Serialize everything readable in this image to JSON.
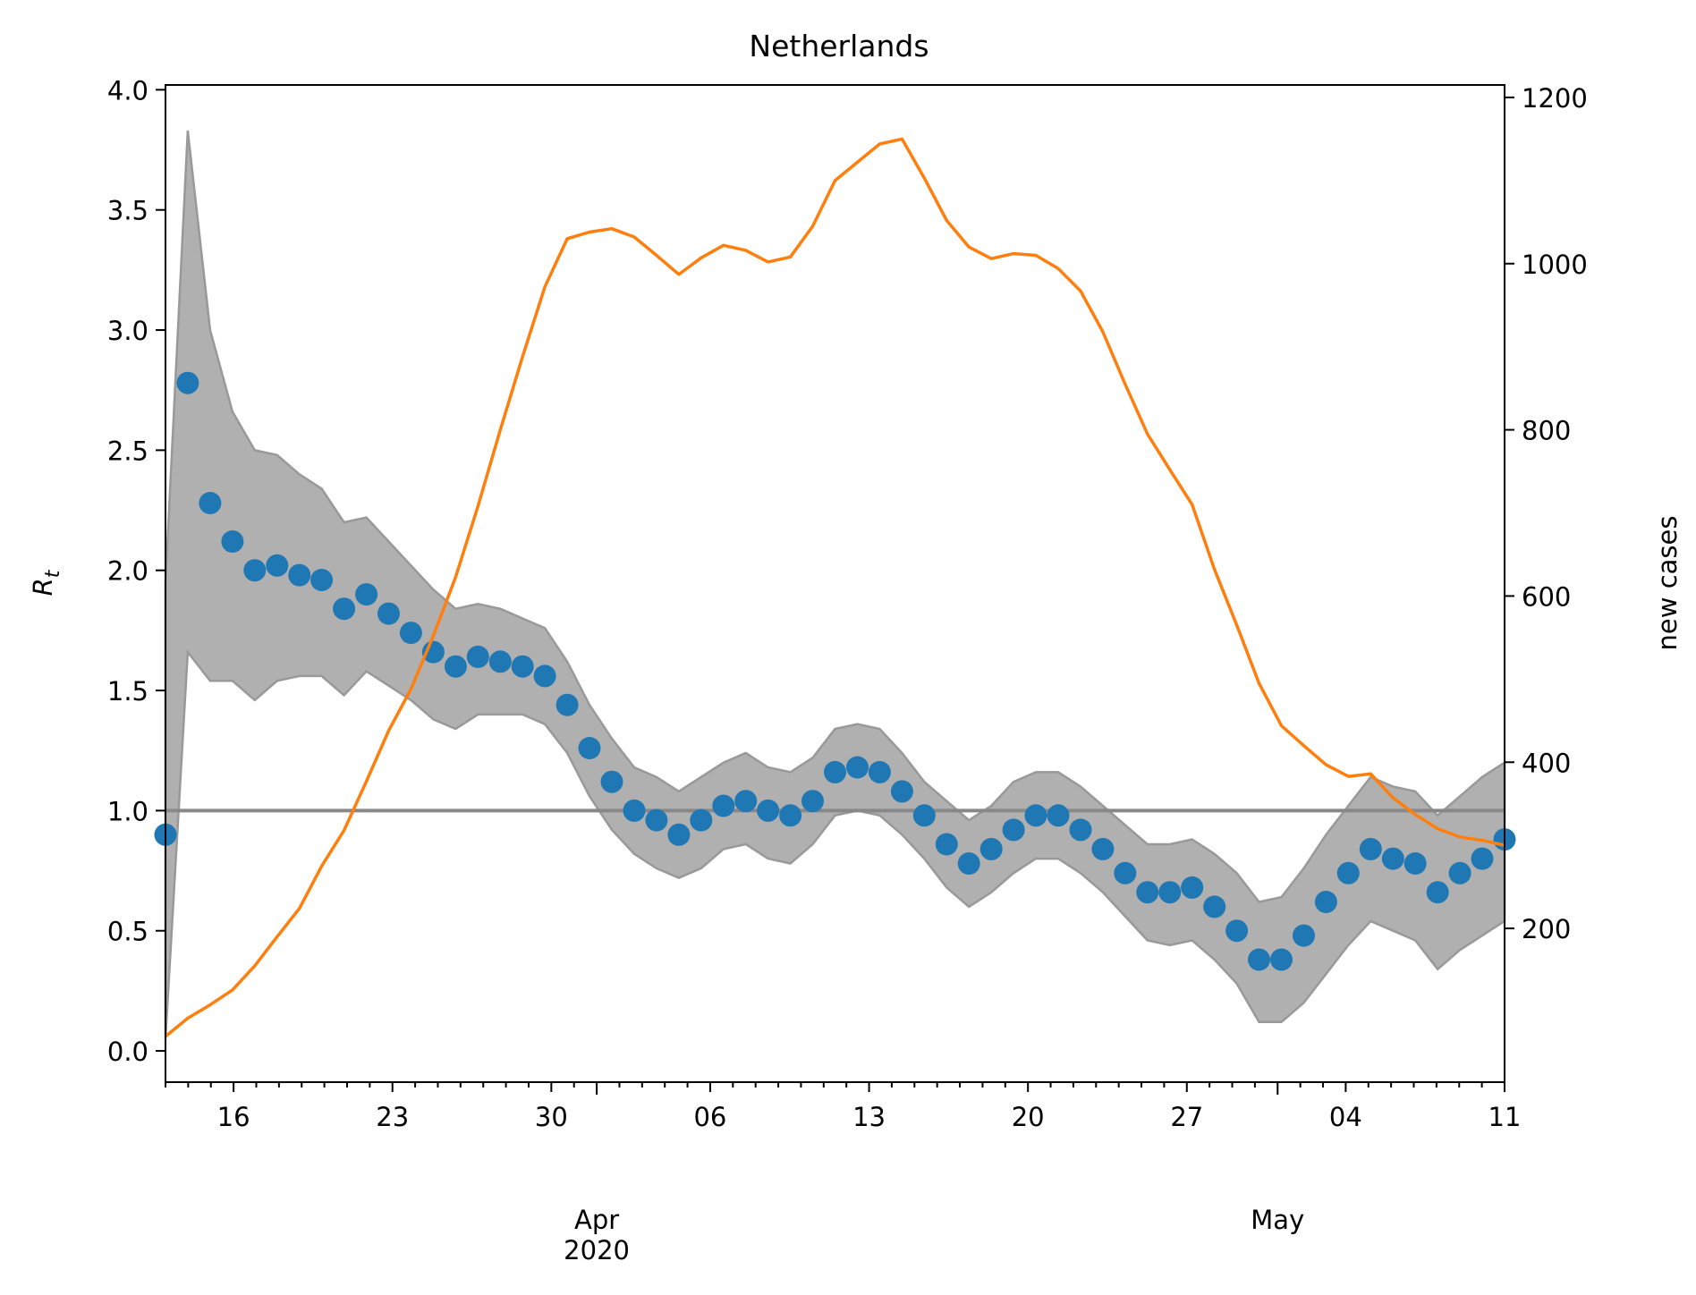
{
  "chart_data": {
    "type": "line",
    "title": "Netherlands",
    "ylabel_left": "R",
    "ylabel_left_subscript": "t",
    "ylabel_right": "new cases",
    "x_axis": {
      "start": "2020-03-13",
      "end": "2020-05-11",
      "tick_labels": [
        "16",
        "23",
        "30",
        "06",
        "13",
        "20",
        "27",
        "04",
        "11"
      ],
      "month_labels": [
        "Apr",
        "May"
      ],
      "year_label": "2020"
    },
    "ylim_left": [
      -0.13,
      4.02
    ],
    "yticks_left": [
      "0.0",
      "0.5",
      "1.0",
      "1.5",
      "2.0",
      "2.5",
      "3.0",
      "3.5",
      "4.0"
    ],
    "ylim_right": [
      15,
      1215
    ],
    "yticks_right": [
      "200",
      "400",
      "600",
      "800",
      "1000",
      "1200"
    ],
    "reference_line": 1.0,
    "grid": false,
    "colors": {
      "rt": "#1f77b4",
      "cases": "#ff7f0e",
      "band": "#b0b0b0",
      "band_edge": "#999999",
      "reference": "#888888"
    },
    "series": [
      {
        "key": "rt",
        "marker": "circle",
        "values": [
          0.9,
          2.78,
          2.28,
          2.12,
          2.0,
          2.02,
          1.98,
          1.96,
          1.84,
          1.9,
          1.82,
          1.74,
          1.66,
          1.6,
          1.64,
          1.62,
          1.6,
          1.56,
          1.44,
          1.26,
          1.12,
          1.0,
          0.96,
          0.9,
          0.96,
          1.02,
          1.04,
          1.0,
          0.98,
          1.04,
          1.16,
          1.18,
          1.16,
          1.08,
          0.98,
          0.86,
          0.78,
          0.84,
          0.92,
          0.98,
          0.98,
          0.92,
          0.84,
          0.74,
          0.66,
          0.66,
          0.68,
          0.6,
          0.5,
          0.38,
          0.38,
          0.48,
          0.62,
          0.74,
          0.84,
          0.8,
          0.78,
          0.66,
          0.74,
          0.8,
          0.88
        ],
        "lower": [
          0.05,
          1.66,
          1.54,
          1.54,
          1.46,
          1.54,
          1.56,
          1.56,
          1.48,
          1.58,
          1.52,
          1.46,
          1.38,
          1.34,
          1.4,
          1.4,
          1.4,
          1.36,
          1.24,
          1.06,
          0.92,
          0.82,
          0.76,
          0.72,
          0.76,
          0.84,
          0.86,
          0.8,
          0.78,
          0.86,
          0.98,
          1.0,
          0.98,
          0.9,
          0.8,
          0.68,
          0.6,
          0.66,
          0.74,
          0.8,
          0.8,
          0.74,
          0.66,
          0.56,
          0.46,
          0.44,
          0.46,
          0.38,
          0.28,
          0.12,
          0.12,
          0.2,
          0.32,
          0.44,
          0.54,
          0.5,
          0.46,
          0.34,
          0.42,
          0.48,
          0.54
        ],
        "upper": [
          1.95,
          3.83,
          3.0,
          2.66,
          2.5,
          2.48,
          2.4,
          2.34,
          2.2,
          2.22,
          2.12,
          2.02,
          1.92,
          1.84,
          1.86,
          1.84,
          1.8,
          1.76,
          1.62,
          1.44,
          1.3,
          1.18,
          1.14,
          1.08,
          1.14,
          1.2,
          1.24,
          1.18,
          1.16,
          1.22,
          1.34,
          1.36,
          1.34,
          1.24,
          1.12,
          1.04,
          0.96,
          1.02,
          1.12,
          1.16,
          1.16,
          1.1,
          1.02,
          0.94,
          0.86,
          0.86,
          0.88,
          0.82,
          0.74,
          0.62,
          0.64,
          0.76,
          0.9,
          1.02,
          1.14,
          1.1,
          1.08,
          0.98,
          1.06,
          1.14,
          1.2
        ]
      },
      {
        "key": "cases",
        "axis": "right",
        "values": [
          70,
          92,
          108,
          126,
          155,
          190,
          224,
          275,
          318,
          377,
          438,
          488,
          552,
          623,
          708,
          800,
          888,
          972,
          1030,
          1038,
          1042,
          1032,
          1010,
          987,
          1007,
          1022,
          1016,
          1002,
          1008,
          1045,
          1100,
          1122,
          1144,
          1150,
          1103,
          1052,
          1020,
          1006,
          1012,
          1010,
          994,
          967,
          918,
          855,
          795,
          752,
          710,
          632,
          565,
          495,
          444,
          420,
          397,
          383,
          386,
          357,
          337,
          320,
          310,
          306,
          300
        ]
      }
    ]
  }
}
